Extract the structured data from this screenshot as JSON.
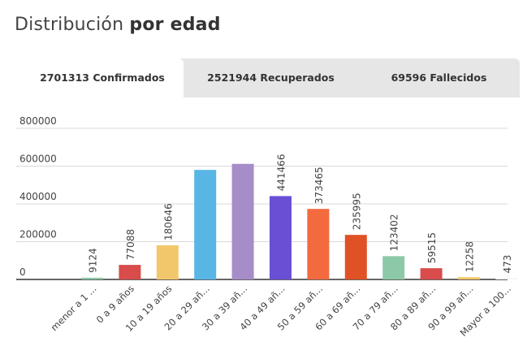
{
  "title": {
    "normal": "Distribución ",
    "bold": "por edad"
  },
  "tabs": [
    {
      "label": "2701313 Confirmados",
      "active": true
    },
    {
      "label": "2521944 Recuperados",
      "active": false
    },
    {
      "label": "69596 Fallecidos",
      "active": false
    }
  ],
  "chart_data": {
    "type": "bar",
    "categories": [
      "menor a 1 ...",
      "0 a 9 años",
      "10 a 19 años",
      "20 a 29 añ...",
      "30 a 39 añ...",
      "40 a 49 añ...",
      "50 a 59 añ...",
      "60 a 69 añ...",
      "70 a 79 añ...",
      "80 a 89 añ...",
      "90 a 99 añ...",
      "Mayor a 100..."
    ],
    "values": [
      9124,
      77088,
      180646,
      580000,
      612000,
      441466,
      373465,
      235995,
      123402,
      59515,
      12258,
      473
    ],
    "data_labels": [
      "9124",
      "77088",
      "180646",
      "",
      "",
      "441466",
      "373465",
      "235995",
      "123402",
      "59515",
      "12258",
      "473"
    ],
    "colors": [
      "#8dc9a8",
      "#d84c4c",
      "#f2c76b",
      "#57b6e4",
      "#a68cc8",
      "#6a4fd4",
      "#f26a3d",
      "#e05226",
      "#8dc9a8",
      "#d84c4c",
      "#f2c76b",
      "#f2f2f2"
    ],
    "yticks": [
      "0",
      "200000",
      "400000",
      "600000",
      "800000"
    ],
    "ylim": [
      0,
      800000
    ],
    "grid": true
  }
}
